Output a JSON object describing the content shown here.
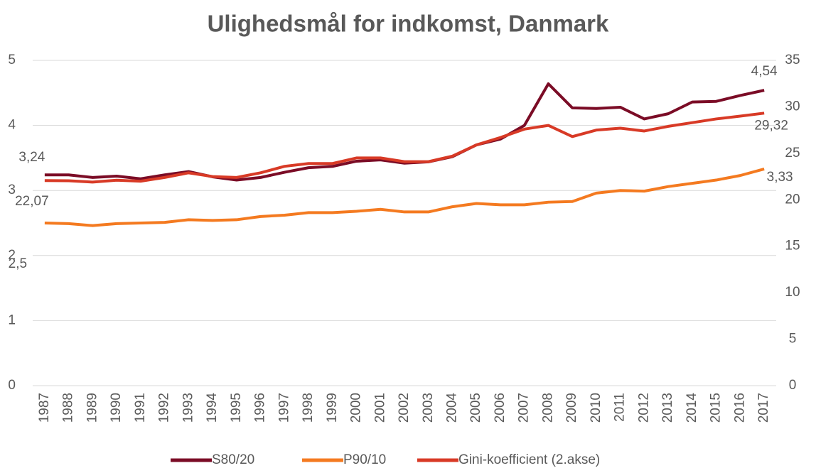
{
  "chart_data": {
    "type": "line",
    "title": "Ulighedsmål for indkomst, Danmark",
    "categories": [
      "1987",
      "1988",
      "1989",
      "1990",
      "1991",
      "1992",
      "1993",
      "1994",
      "1995",
      "1996",
      "1997",
      "1998",
      "1999",
      "2000",
      "2001",
      "2002",
      "2003",
      "2004",
      "2005",
      "2006",
      "2007",
      "2008",
      "2009",
      "2010",
      "2011",
      "2012",
      "2013",
      "2014",
      "2015",
      "2016",
      "2017"
    ],
    "series": [
      {
        "name": "S80/20",
        "color": "#7b0c26",
        "values": [
          3.24,
          3.24,
          3.2,
          3.22,
          3.18,
          3.24,
          3.29,
          3.21,
          3.16,
          3.2,
          3.28,
          3.35,
          3.37,
          3.45,
          3.47,
          3.42,
          3.44,
          3.52,
          3.7,
          3.79,
          4.0,
          4.64,
          4.27,
          4.26,
          4.28,
          4.1,
          4.18,
          4.36,
          4.37,
          4.46,
          4.54
        ],
        "value_labels": [
          "3,24",
          null,
          null,
          null,
          null,
          null,
          null,
          null,
          null,
          null,
          null,
          null,
          null,
          null,
          null,
          null,
          null,
          null,
          null,
          null,
          null,
          null,
          null,
          null,
          null,
          null,
          null,
          null,
          null,
          null,
          "4,54"
        ]
      },
      {
        "name": "P90/10",
        "color": "#f47a20",
        "values": [
          2.5,
          2.49,
          2.46,
          2.49,
          2.5,
          2.51,
          2.55,
          2.54,
          2.55,
          2.6,
          2.62,
          2.66,
          2.66,
          2.68,
          2.71,
          2.67,
          2.67,
          2.75,
          2.8,
          2.78,
          2.78,
          2.82,
          2.83,
          2.96,
          3.0,
          2.99,
          3.06,
          3.11,
          3.16,
          3.23,
          3.33
        ],
        "value_labels": [
          "2,5",
          null,
          null,
          null,
          null,
          null,
          null,
          null,
          null,
          null,
          null,
          null,
          null,
          null,
          null,
          null,
          null,
          null,
          null,
          null,
          null,
          null,
          null,
          null,
          null,
          null,
          null,
          null,
          null,
          null,
          "3,33"
        ]
      },
      {
        "name": "Gini-koefficient (2.akse)",
        "color": "#d83a26",
        "axis": "y2",
        "values": [
          22.07,
          22.05,
          21.9,
          22.1,
          22.0,
          22.4,
          22.9,
          22.5,
          22.4,
          22.9,
          23.6,
          23.9,
          23.9,
          24.5,
          24.5,
          24.1,
          24.1,
          24.7,
          25.9,
          26.7,
          27.6,
          28.0,
          26.8,
          27.5,
          27.7,
          27.4,
          27.9,
          28.3,
          28.7,
          29.0,
          29.32
        ],
        "value_labels": [
          "22,07",
          null,
          null,
          null,
          null,
          null,
          null,
          null,
          null,
          null,
          null,
          null,
          null,
          null,
          null,
          null,
          null,
          null,
          null,
          null,
          null,
          null,
          null,
          null,
          null,
          null,
          null,
          null,
          null,
          null,
          "29,32"
        ]
      }
    ],
    "ylim": [
      0,
      5
    ],
    "yticks": [
      0,
      1,
      2,
      3,
      4,
      5
    ],
    "y2lim": [
      0,
      35
    ],
    "y2ticks": [
      0,
      5,
      10,
      15,
      20,
      25,
      30,
      35
    ],
    "grid": true,
    "legend": "bottom"
  }
}
